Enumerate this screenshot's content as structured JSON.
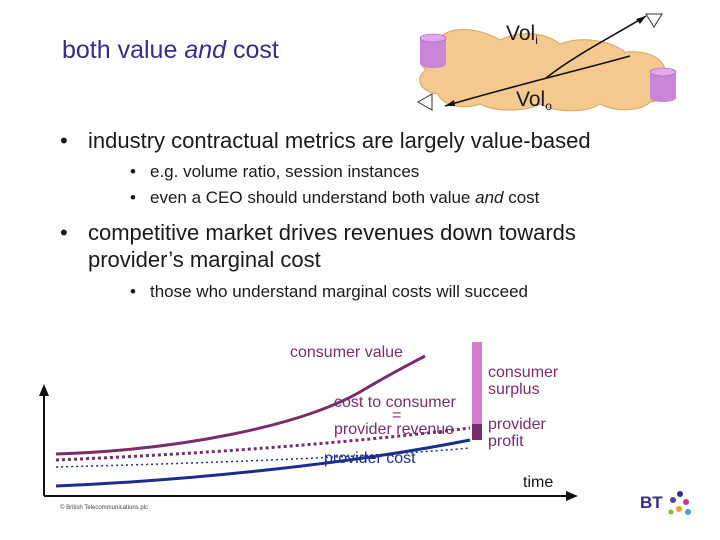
{
  "title": {
    "part1": "both value ",
    "italic": "and",
    "part2": " cost"
  },
  "diagram": {
    "vol_in": {
      "base": "Vol",
      "sub": "i"
    },
    "vol_out": {
      "base": "Vol",
      "sub": "o"
    },
    "colors": {
      "cloud": "#f4c98f",
      "cloud_edge": "#d9a55e",
      "db": "#c986d9"
    }
  },
  "bullets": [
    {
      "text": "industry contractual metrics are largely value-based",
      "sub": [
        {
          "pre": "e.g. volume ratio, session instances"
        },
        {
          "pre": "even a CEO should understand both value ",
          "italic": "and",
          "post": " cost"
        }
      ]
    },
    {
      "line1": "competitive market drives revenues down towards",
      "line2": "provider’s marginal cost",
      "sub": [
        {
          "pre": "those who understand marginal costs will succeed"
        }
      ]
    }
  ],
  "chart": {
    "consumer_value": "consumer value",
    "cost_to_consumer": "cost to consumer",
    "equals": "=",
    "provider_revenue": "provider revenue",
    "provider_cost": "provider cost",
    "consumer_surplus_1": "consumer",
    "consumer_surplus_2": "surplus",
    "provider_profit_1": "provider",
    "provider_profit_2": "profit",
    "time": "time",
    "colors": {
      "value": "#7b2d6b",
      "cost": "#1c2e8c",
      "surplus_bar": "#d67ac9",
      "profit_bar": "#7b2d6b"
    }
  },
  "footer": "© British Telecommunications plc",
  "logo_text": "BT"
}
